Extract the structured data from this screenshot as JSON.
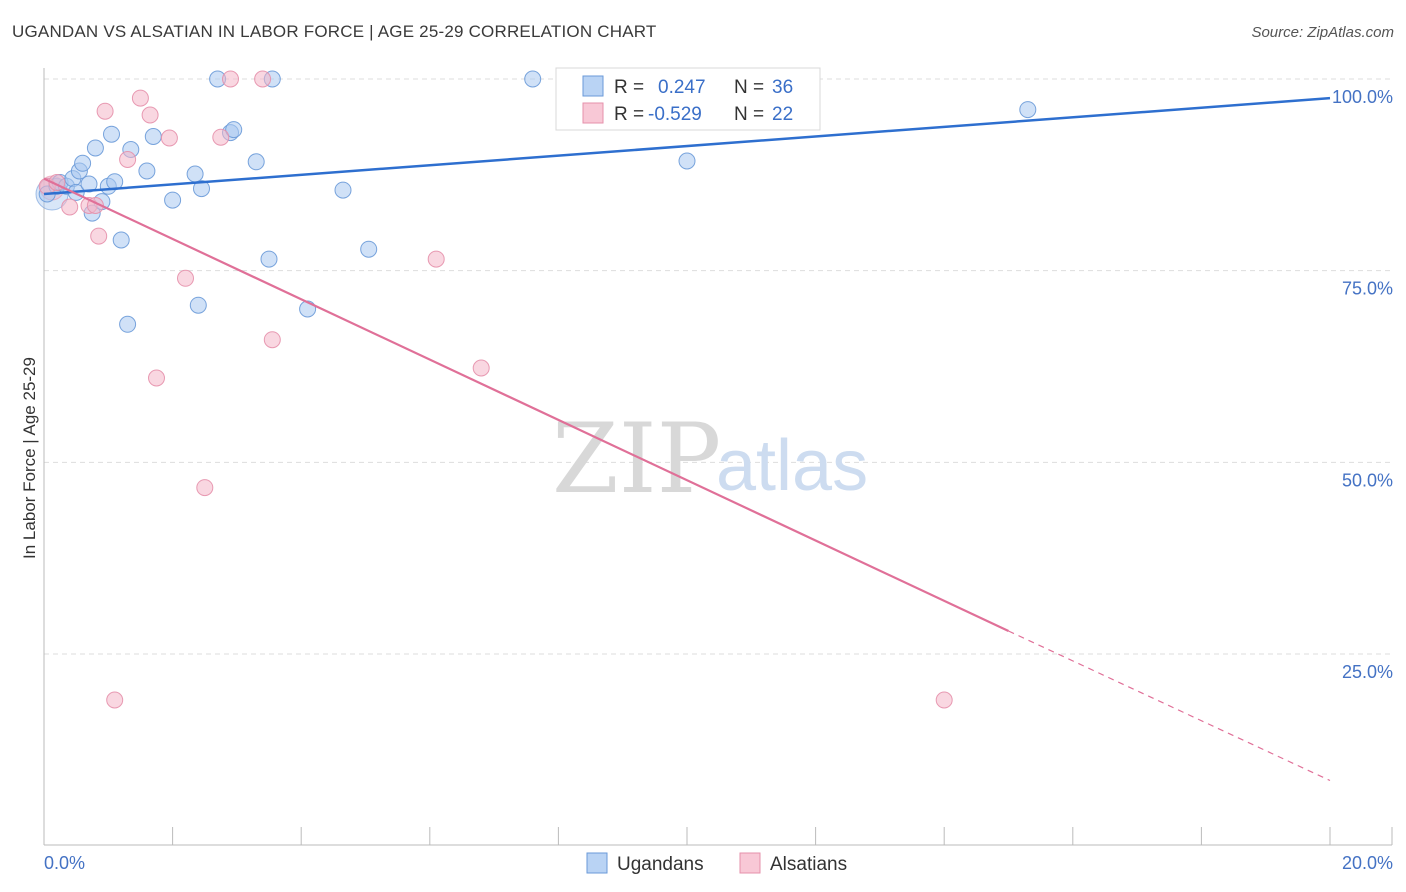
{
  "header": {
    "title": "UGANDAN VS ALSATIAN IN LABOR FORCE | AGE 25-29 CORRELATION CHART",
    "source": "Source: ZipAtlas.com"
  },
  "watermark": {
    "zip": "ZIP",
    "atlas": "atlas"
  },
  "legend": {
    "rows": [
      {
        "r_label": "R =",
        "r_value": "0.247",
        "n_label": "N =",
        "n_value": "36"
      },
      {
        "r_label": "R =",
        "r_value": "-0.529",
        "n_label": "N =",
        "n_value": "22"
      }
    ]
  },
  "bottom_legend": {
    "series1": "Ugandans",
    "series2": "Alsatians"
  },
  "colors": {
    "ugandan_fill": "#a9c8f0",
    "ugandan_stroke": "#6a9ad8",
    "ugandan_line": "#2e6fcf",
    "alsatian_fill": "#f4b6c8",
    "alsatian_stroke": "#e690ab",
    "alsatian_line": "#e07098",
    "grid": "#dddddd",
    "tick_label": "#4472c4"
  },
  "chart_data": {
    "type": "scatter",
    "title": "UGANDAN VS ALSATIAN IN LABOR FORCE | AGE 25-29 CORRELATION CHART",
    "xlabel": "",
    "ylabel": "In Labor Force | Age 25-29",
    "xlim": [
      0,
      20
    ],
    "ylim": [
      0,
      101
    ],
    "x_ticks": [
      0,
      20
    ],
    "x_tick_labels": [
      "0.0%",
      "20.0%"
    ],
    "y_ticks": [
      25,
      50,
      75,
      100
    ],
    "y_tick_labels": [
      "25.0%",
      "50.0%",
      "75.0%",
      "100.0%"
    ],
    "grid": true,
    "legend_position": "top-center",
    "series": [
      {
        "name": "Ugandans",
        "r": 0.247,
        "n": 36,
        "points": [
          [
            0.05,
            85.0
          ],
          [
            0.2,
            86.0
          ],
          [
            0.25,
            86.5
          ],
          [
            0.35,
            86.0
          ],
          [
            0.45,
            87.0
          ],
          [
            0.5,
            85.2
          ],
          [
            0.55,
            88.0
          ],
          [
            0.6,
            89.0
          ],
          [
            0.7,
            86.3
          ],
          [
            0.75,
            82.5
          ],
          [
            0.8,
            91.0
          ],
          [
            0.9,
            84.0
          ],
          [
            1.0,
            86.0
          ],
          [
            1.05,
            92.8
          ],
          [
            1.1,
            86.6
          ],
          [
            1.2,
            79.0
          ],
          [
            1.3,
            68.0
          ],
          [
            1.35,
            90.8
          ],
          [
            1.6,
            88.0
          ],
          [
            1.7,
            92.5
          ],
          [
            2.0,
            84.2
          ],
          [
            2.35,
            87.6
          ],
          [
            2.4,
            70.5
          ],
          [
            2.45,
            85.7
          ],
          [
            2.7,
            100.0
          ],
          [
            2.9,
            93.0
          ],
          [
            2.95,
            93.4
          ],
          [
            3.3,
            89.2
          ],
          [
            3.5,
            76.5
          ],
          [
            3.55,
            100.0
          ],
          [
            4.1,
            70.0
          ],
          [
            4.65,
            85.5
          ],
          [
            5.05,
            77.8
          ],
          [
            7.6,
            100.0
          ],
          [
            10.0,
            89.3
          ],
          [
            15.3,
            96.0
          ]
        ],
        "trend": {
          "x": [
            0,
            20
          ],
          "y": [
            85.0,
            97.5
          ]
        }
      },
      {
        "name": "Alsatians",
        "r": -0.529,
        "n": 22,
        "points": [
          [
            0.05,
            86.0
          ],
          [
            0.2,
            86.5
          ],
          [
            0.4,
            83.3
          ],
          [
            0.7,
            83.5
          ],
          [
            0.8,
            83.5
          ],
          [
            0.85,
            79.5
          ],
          [
            0.95,
            95.8
          ],
          [
            1.1,
            19.0
          ],
          [
            1.3,
            89.5
          ],
          [
            1.5,
            97.5
          ],
          [
            1.65,
            95.3
          ],
          [
            1.75,
            61.0
          ],
          [
            1.95,
            92.3
          ],
          [
            2.2,
            74.0
          ],
          [
            2.5,
            46.7
          ],
          [
            2.75,
            92.4
          ],
          [
            2.9,
            100.0
          ],
          [
            3.4,
            100.0
          ],
          [
            3.55,
            66.0
          ],
          [
            6.1,
            76.5
          ],
          [
            6.8,
            62.3
          ],
          [
            14.0,
            19.0
          ]
        ],
        "trend": {
          "x": [
            0,
            15
          ],
          "y": [
            87.0,
            28.0
          ]
        },
        "trend_extension": {
          "x": [
            15,
            20
          ],
          "y": [
            28.0,
            8.5
          ]
        }
      }
    ]
  }
}
